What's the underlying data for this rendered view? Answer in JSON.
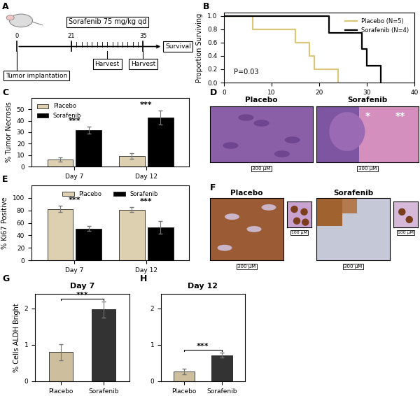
{
  "panel_labels": [
    "A",
    "B",
    "C",
    "D",
    "E",
    "F",
    "G",
    "H"
  ],
  "schematic": {
    "treatment": "Sorafenib 75 mg/kg qd",
    "timeline_ticks": [
      0,
      21,
      35
    ],
    "start": "Tumor implantation",
    "harvests": [
      "Harvest",
      "Harvest"
    ],
    "end": "Survival"
  },
  "chart_data": [
    {
      "type": "line",
      "y_label": "Proportion Surviving",
      "xlim": [
        0,
        40
      ],
      "xticks": [
        0,
        10,
        20,
        30,
        40
      ],
      "ylim": [
        0,
        1.05
      ],
      "yticks": [
        {
          "value": 0,
          "label": "0.0"
        },
        {
          "value": 0.2,
          "label": "0.2"
        },
        {
          "value": 0.4,
          "label": "0.4"
        },
        {
          "value": 0.6,
          "label": "0.6"
        },
        {
          "value": 0.8,
          "label": "0.8"
        },
        {
          "value": 1,
          "label": "1.0"
        }
      ],
      "legend": "upper right",
      "annotations": [
        "P=0.03"
      ],
      "line_style": "steps",
      "series": [
        {
          "name": "Placebo (N=5)",
          "color": "#d9c77a",
          "x": [
            0,
            6,
            15,
            18,
            19,
            24
          ],
          "values": [
            1,
            0.8,
            0.6,
            0.4,
            0.2,
            0
          ]
        },
        {
          "name": "Sorafenib (N=4)",
          "color": "#000000",
          "x": [
            0,
            22,
            29,
            30,
            33
          ],
          "values": [
            1,
            0.75,
            0.5,
            0.25,
            0
          ]
        }
      ]
    },
    {
      "type": "bar",
      "y_label": "% Tumor Necrosis",
      "categories": [
        "Day 7",
        "Day 12"
      ],
      "ylim": [
        0,
        60
      ],
      "yticks": [
        0,
        10,
        20,
        30,
        40,
        50
      ],
      "legend": "upper left",
      "annotations": [
        "***",
        "***"
      ],
      "series": [
        {
          "name": "Placebo",
          "color": "#ddd0b0",
          "values": [
            6,
            9
          ],
          "errors": [
            2,
            2.5
          ]
        },
        {
          "name": "Sorafenib",
          "color": "#000000",
          "values": [
            32,
            43
          ],
          "errors": [
            3,
            6
          ]
        }
      ]
    },
    {
      "type": "bar",
      "y_label": "% Ki67 Positive",
      "categories": [
        "Day 7",
        "Day 12"
      ],
      "ylim": [
        0,
        120
      ],
      "yticks": [
        0,
        20,
        40,
        60,
        80,
        100
      ],
      "legend": "upper center",
      "annotations": [
        "***",
        "***"
      ],
      "series": [
        {
          "name": "Placebo",
          "color": "#ddd0b0",
          "values": [
            82,
            81
          ],
          "errors": [
            5,
            4
          ]
        },
        {
          "name": "Sorafenib",
          "color": "#000000",
          "values": [
            51,
            53
          ],
          "errors": [
            4,
            10
          ]
        }
      ]
    },
    {
      "type": "bar",
      "title": "Day 7",
      "y_label": "% Cells ALDH Bright",
      "categories": [
        "Placebo",
        "Sorafenib"
      ],
      "colors": [
        "#cdbf9e",
        "#333333"
      ],
      "values": [
        0.8,
        1.97
      ],
      "errors": [
        0.22,
        0.22
      ],
      "ylim": [
        0,
        2.4
      ],
      "yticks": [
        0,
        1,
        2
      ],
      "annotations": [
        "***"
      ]
    },
    {
      "type": "bar",
      "title": "Day 12",
      "categories": [
        "Placebo",
        "Sorafenib"
      ],
      "colors": [
        "#cdbf9e",
        "#333333"
      ],
      "values": [
        0.27,
        0.72
      ],
      "errors": [
        0.08,
        0.07
      ],
      "ylim": [
        0,
        2.4
      ],
      "yticks": [
        0,
        1,
        2
      ],
      "annotations": [
        "***"
      ]
    }
  ],
  "histology": {
    "groups": [
      "Placebo",
      "Sorafenib"
    ],
    "scale_bar": "300 μM",
    "markers": [
      "*",
      "**"
    ]
  },
  "ki67_stain": {
    "groups": [
      "Placebo",
      "Sorafenib"
    ],
    "scale_bar": "300 μM",
    "inset_scale_bar": "100 μM"
  }
}
